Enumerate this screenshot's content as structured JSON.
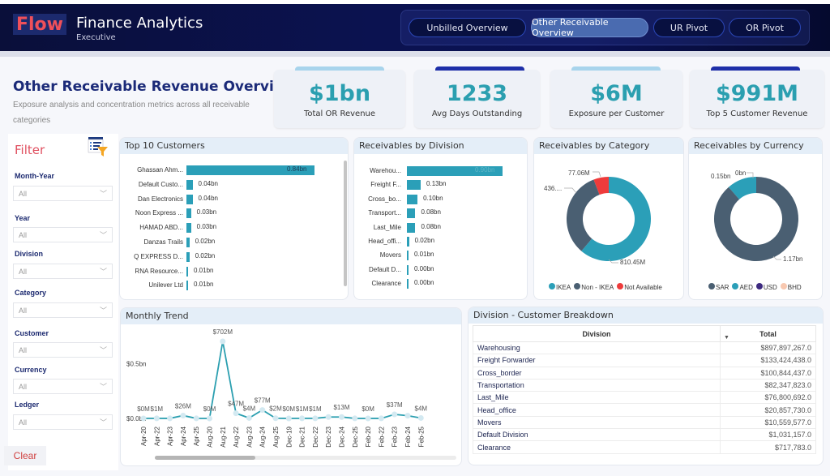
{
  "header": {
    "logo": "Flow",
    "title": "Finance Analytics",
    "subtitle": "Executive",
    "nav": [
      {
        "label": "Unbilled Overview",
        "active": false
      },
      {
        "label": "Other Receivable Overview",
        "active": true
      },
      {
        "label": "UR Pivot",
        "active": false
      },
      {
        "label": "OR Pivot",
        "active": false
      }
    ]
  },
  "page": {
    "title": "Other Receivable Revenue Overview",
    "subtitle": "Exposure analysis and concentration metrics across all receivable categories"
  },
  "kpis": [
    {
      "value": "$1bn",
      "label": "Total OR Revenue",
      "accent": "#a8d4ec"
    },
    {
      "value": "1233",
      "label": "Avg Days Outstanding",
      "accent": "#1e2fa8"
    },
    {
      "value": "$6M",
      "label": "Exposure per Customer",
      "accent": "#a8d4ec"
    },
    {
      "value": "$991M",
      "label": "Top 5 Customer Revenue",
      "accent": "#1e2fa8"
    }
  ],
  "filters": {
    "title": "Filter",
    "icon": "filter-list-icon",
    "items": [
      {
        "label": "Month-Year",
        "value": "All"
      },
      {
        "label": "Year",
        "value": "All"
      },
      {
        "label": "Division",
        "value": "All"
      },
      {
        "label": "Category",
        "value": "All"
      },
      {
        "label": "Customer",
        "value": "All"
      },
      {
        "label": "Currency",
        "value": "All"
      },
      {
        "label": "Ledger",
        "value": "All"
      }
    ],
    "clear_label": "Clear"
  },
  "chart_data": [
    {
      "type": "bar",
      "orientation": "horizontal",
      "title": "Top 10 Customers",
      "categories": [
        "Ghassan Ahm...",
        "Default Custo...",
        "Dan Electronics",
        "Noon Express ...",
        "HAMAD ABD...",
        "Danzas Trails",
        "Q EXPRESS D...",
        "RNA Resource...",
        "Unilever Ltd"
      ],
      "values": [
        0.84,
        0.04,
        0.04,
        0.03,
        0.03,
        0.02,
        0.02,
        0.01,
        0.01
      ],
      "labels": [
        "0.84bn",
        "0.04bn",
        "0.04bn",
        "0.03bn",
        "0.03bn",
        "0.02bn",
        "0.02bn",
        "0.01bn",
        "0.01bn"
      ],
      "unit": "bn",
      "color": "#2b9fb8"
    },
    {
      "type": "bar",
      "orientation": "horizontal",
      "title": "Receivables by Division",
      "categories": [
        "Warehou...",
        "Freight F...",
        "Cross_bo...",
        "Transport...",
        "Last_Mile",
        "Head_offi...",
        "Movers",
        "Default D...",
        "Clearance"
      ],
      "values": [
        0.9,
        0.13,
        0.1,
        0.08,
        0.08,
        0.02,
        0.01,
        0.0,
        0.0
      ],
      "labels": [
        "0.90bn",
        "0.13bn",
        "0.10bn",
        "0.08bn",
        "0.08bn",
        "0.02bn",
        "0.01bn",
        "0.00bn",
        "0.00bn"
      ],
      "unit": "bn",
      "color": "#2b9fb8"
    },
    {
      "type": "pie",
      "donut": true,
      "title": "Receivables by Category",
      "slices": [
        {
          "name": "IKEA",
          "value": 810.45,
          "label": "810.45M",
          "color": "#2b9fb8"
        },
        {
          "name": "Non - IKEA",
          "value": 436,
          "label": "436....",
          "color": "#4a5f72"
        },
        {
          "name": "Not Available",
          "value": 77.06,
          "label": "77.06M",
          "color": "#ee3b3b"
        }
      ],
      "legend": "bottom"
    },
    {
      "type": "pie",
      "donut": true,
      "title": "Receivables by Currency",
      "slices": [
        {
          "name": "SAR",
          "value": 1.17,
          "label": "1.17bn",
          "color": "#4a5f72"
        },
        {
          "name": "AED",
          "value": 0.15,
          "label": "0.15bn",
          "color": "#2b9fb8"
        },
        {
          "name": "USD",
          "value": 0.0,
          "label": "0bn",
          "color": "#3d2a80"
        },
        {
          "name": "BHD",
          "value": 0.0,
          "label": "",
          "color": "#f8c8b0"
        }
      ],
      "legend": "bottom"
    },
    {
      "type": "line",
      "title": "Monthly Trend",
      "x": [
        "Apr-20",
        "Apr-22",
        "Apr-23",
        "Apr-24",
        "Apr-25",
        "Aug-20",
        "Aug-21",
        "Aug-22",
        "Aug-23",
        "Aug-24",
        "Aug-25",
        "Dec-19",
        "Dec-21",
        "Dec-22",
        "Dec-23",
        "Dec-24",
        "Dec-25",
        "Feb-20",
        "Feb-22",
        "Feb-23",
        "Feb-24",
        "Feb-25"
      ],
      "values": [
        0,
        1,
        0.5,
        26,
        0.5,
        0,
        702,
        47,
        4,
        77,
        2,
        0,
        1,
        1,
        13,
        13,
        0.5,
        0,
        0.5,
        37,
        25,
        4
      ],
      "labels": [
        "$0M",
        "$1M",
        "",
        "$26M",
        "",
        "$0M",
        "$702M",
        "$47M",
        "$4M",
        "$77M",
        "$2M",
        "$0M",
        "$1M",
        "$1M",
        "",
        "$13M",
        "",
        "$0M",
        "",
        "$37M",
        "",
        "$4M"
      ],
      "unit": "$M",
      "yticks": [
        "$0.0bn",
        "$0.5bn"
      ],
      "ylim": [
        0,
        800
      ],
      "color": "#2b9fb0"
    }
  ],
  "table": {
    "title": "Division - Customer Breakdown",
    "columns": [
      "Division",
      "Total"
    ],
    "sort_column": "Total",
    "rows": [
      [
        "Warehousing",
        "$897,897,267.0"
      ],
      [
        "Freight Forwarder",
        "$133,424,438.0"
      ],
      [
        "Cross_border",
        "$100,844,437.0"
      ],
      [
        "Transportation",
        "$82,347,823.0"
      ],
      [
        "Last_Mile",
        "$76,800,692.0"
      ],
      [
        "Head_office",
        "$20,857,730.0"
      ],
      [
        "Movers",
        "$10,559,577.0"
      ],
      [
        "Default Division",
        "$1,031,157.0"
      ],
      [
        "Clearance",
        "$717,783.0"
      ]
    ]
  }
}
